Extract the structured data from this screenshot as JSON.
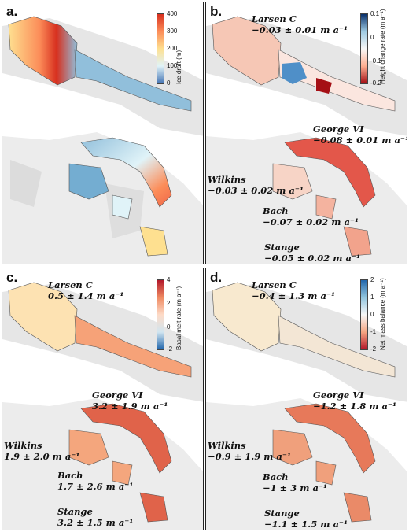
{
  "panels": [
    {
      "id": "a",
      "label": "a.",
      "colorbar": {
        "title": "Ice draft (m)",
        "ticks": [
          "400",
          "300",
          "200",
          "100",
          "0"
        ],
        "colors": [
          "#d7301f",
          "#fc8d59",
          "#fee090",
          "#e0f3f8",
          "#4575b4"
        ]
      },
      "annotations": []
    },
    {
      "id": "b",
      "label": "b.",
      "colorbar": {
        "title": "Height change rate (m a⁻¹)",
        "ticks": [
          "0.1",
          "0",
          "-0.1",
          "-0.2"
        ],
        "colors": [
          "#08306b",
          "#9ecae1",
          "#f7f7f7",
          "#fcae91",
          "#a50f15"
        ]
      },
      "annotations": [
        {
          "name": "Larsen C",
          "value": "−0.03 ± 0.01 m a⁻¹"
        },
        {
          "name": "George VI",
          "value": "−0.08 ± 0.01 m a⁻¹"
        },
        {
          "name": "Wilkins",
          "value": "−0.03 ± 0.02 m a⁻¹"
        },
        {
          "name": "Bach",
          "value": "−0.07 ± 0.02 m a⁻¹"
        },
        {
          "name": "Stange",
          "value": "−0.05 ± 0.02 m a⁻¹"
        }
      ]
    },
    {
      "id": "c",
      "label": "c.",
      "colorbar": {
        "title": "Basal melt rate (m a⁻¹)",
        "ticks": [
          "4",
          "2",
          "0",
          "-2"
        ],
        "colors": [
          "#b2182b",
          "#ef8a62",
          "#fddbc7",
          "#d1e5f0",
          "#2166ac"
        ]
      },
      "annotations": [
        {
          "name": "Larsen C",
          "value": "0.5 ± 1.4 m a⁻¹"
        },
        {
          "name": "George VI",
          "value": "3.2 ± 1.9 m a⁻¹"
        },
        {
          "name": "Wilkins",
          "value": "1.9 ± 2.0 m a⁻¹"
        },
        {
          "name": "Bach",
          "value": "1.7 ± 2.6 m a⁻¹"
        },
        {
          "name": "Stange",
          "value": "3.2 ± 1.5 m a⁻¹"
        }
      ]
    },
    {
      "id": "d",
      "label": "d.",
      "colorbar": {
        "title": "Net mass balance (m a⁻¹)",
        "ticks": [
          "2",
          "1",
          "0",
          "-1",
          "-2"
        ],
        "colors": [
          "#2166ac",
          "#92c5de",
          "#f7f7f7",
          "#f4a582",
          "#b2182b"
        ]
      },
      "annotations": [
        {
          "name": "Larsen C",
          "value": "−0.4 ± 1.3 m a⁻¹"
        },
        {
          "name": "George VI",
          "value": "−1.2 ± 1.8 m a⁻¹"
        },
        {
          "name": "Wilkins",
          "value": "−0.9 ± 1.9 m a⁻¹"
        },
        {
          "name": "Bach",
          "value": "−1 ± 3 m a⁻¹"
        },
        {
          "name": "Stange",
          "value": "−1.1 ± 1.5 m a⁻¹"
        }
      ]
    }
  ]
}
